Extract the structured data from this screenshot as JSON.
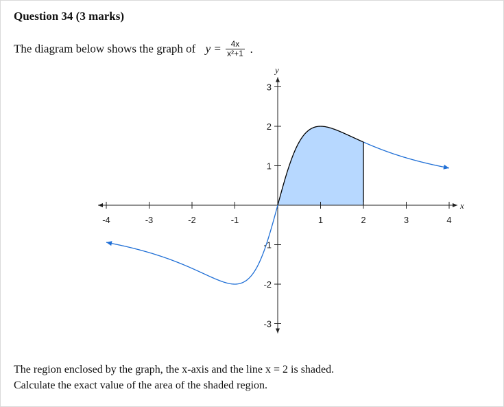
{
  "question": {
    "title": "Question 34 (3 marks)",
    "intro": "The diagram below shows the graph of",
    "equation": {
      "lhs": "y =",
      "numerator": "4x",
      "denominator": "x²+1",
      "end": "."
    },
    "footer_line1": "The region enclosed by the graph, the x-axis and the line x = 2 is shaded.",
    "footer_line2": "Calculate the exact value of the area of the shaded region."
  },
  "chart_data": {
    "type": "line",
    "function": "y = 4x/(x^2+1)",
    "x_range": [
      -4,
      4
    ],
    "y_range": [
      -3,
      3
    ],
    "xlabel": "x",
    "ylabel": "y",
    "x_ticks": [
      "-4",
      "-3",
      "-2",
      "-1",
      "1",
      "2",
      "3",
      "4"
    ],
    "y_ticks": [
      "3",
      "2",
      "1",
      "-1",
      "-2",
      "-3"
    ],
    "shaded_region": {
      "from_x": 0,
      "to_x": 2,
      "fill": "#b7d8ff"
    },
    "curve_color_outside": "#1f6fd6",
    "curve_color_shaded": "#000000",
    "grid": false
  }
}
